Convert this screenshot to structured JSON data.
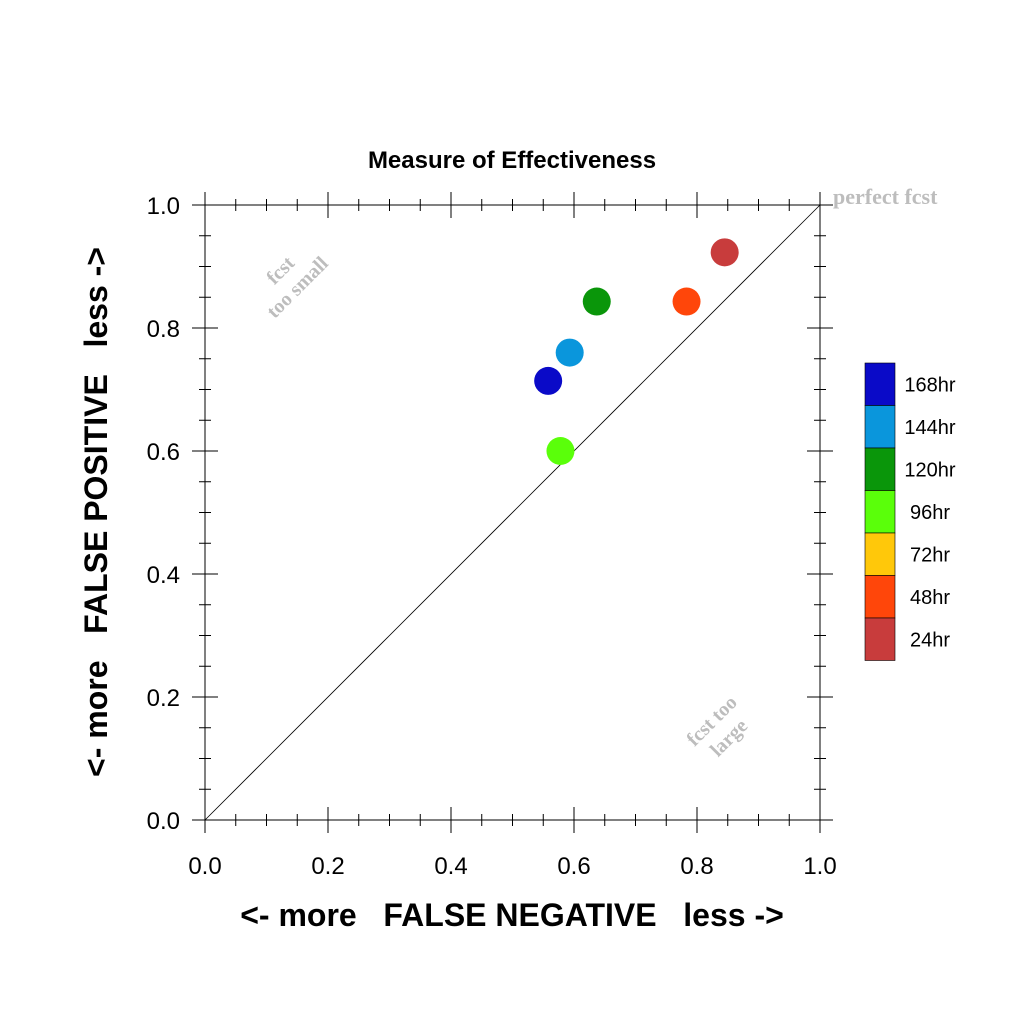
{
  "chart_data": {
    "type": "scatter",
    "title": "Measure of Effectiveness",
    "xlabel": "<- more   FALSE NEGATIVE   less ->",
    "ylabel": "<- more   FALSE POSITIVE   less ->",
    "xlim": [
      0.0,
      1.0
    ],
    "ylim": [
      0.0,
      1.0
    ],
    "x_ticks": [
      "0.0",
      "0.2",
      "0.4",
      "0.6",
      "0.8",
      "1.0"
    ],
    "y_ticks": [
      "0.0",
      "0.2",
      "0.4",
      "0.6",
      "0.8",
      "1.0"
    ],
    "grid": false,
    "reference_line": {
      "from": [
        0.0,
        0.0
      ],
      "to": [
        1.0,
        1.0
      ]
    },
    "annotations": {
      "perfect": "perfect fcst",
      "small_line1": "fcst",
      "small_line2": "too small",
      "large_line1": "fcst too",
      "large_line2": "large"
    },
    "annotation_color": "#bdbdbd",
    "legend_position": "right",
    "legend": [
      {
        "label": "168hr",
        "color": "#0a0ac8"
      },
      {
        "label": "144hr",
        "color": "#0a96dc"
      },
      {
        "label": "120hr",
        "color": "#0a960a"
      },
      {
        "label": "96hr",
        "color": "#5aff0a"
      },
      {
        "label": "72hr",
        "color": "#ffc80a"
      },
      {
        "label": "48hr",
        "color": "#ff460a"
      },
      {
        "label": "24hr",
        "color": "#c83c3c"
      }
    ],
    "series": [
      {
        "name": "168hr",
        "color": "#0a0ac8",
        "x": 0.558,
        "y": 0.714
      },
      {
        "name": "144hr",
        "color": "#0a96dc",
        "x": 0.593,
        "y": 0.76
      },
      {
        "name": "120hr",
        "color": "#0a960a",
        "x": 0.637,
        "y": 0.843
      },
      {
        "name": "96hr",
        "color": "#5aff0a",
        "x": 0.578,
        "y": 0.6
      },
      {
        "name": "48hr",
        "color": "#ff460a",
        "x": 0.783,
        "y": 0.843
      },
      {
        "name": "24hr",
        "color": "#c83c3c",
        "x": 0.845,
        "y": 0.923
      }
    ]
  }
}
